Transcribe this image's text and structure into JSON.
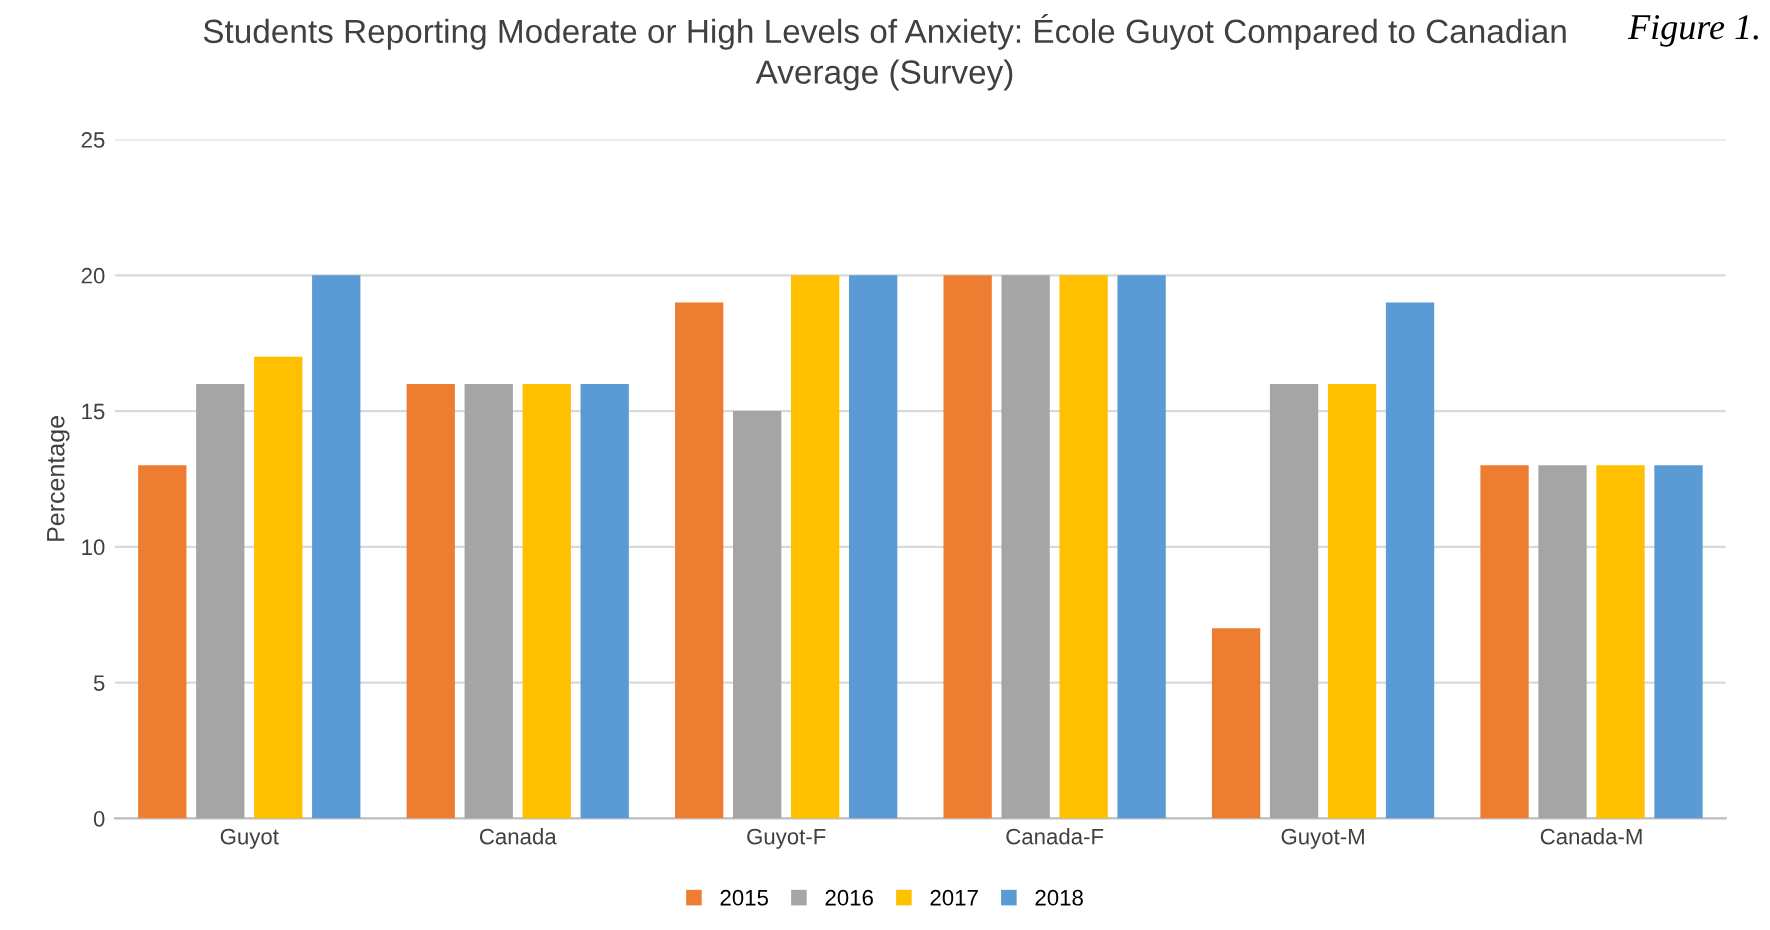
{
  "chart_data": {
    "type": "bar",
    "title": "Students Reporting Moderate or High Levels of Anxiety: École Guyot Compared to Canadian\nAverage (Survey)",
    "ylabel": "Percentage",
    "annotations": [
      "Figure 1."
    ],
    "categories": [
      "Guyot",
      "Canada",
      "Guyot-F",
      "Canada-F",
      "Guyot-M",
      "Canada-M"
    ],
    "series": [
      {
        "name": "2015",
        "color": "#ed7d31",
        "values": [
          13,
          16,
          19,
          20,
          7,
          13
        ]
      },
      {
        "name": "2016",
        "color": "#a5a5a5",
        "values": [
          16,
          16,
          15,
          20,
          16,
          13
        ]
      },
      {
        "name": "2017",
        "color": "#ffc000",
        "values": [
          17,
          16,
          20,
          20,
          16,
          13
        ]
      },
      {
        "name": "2018",
        "color": "#5b9bd5",
        "values": [
          20,
          16,
          20,
          20,
          19,
          13
        ]
      }
    ],
    "ylim": [
      0,
      25
    ],
    "yticks": [
      0,
      5,
      10,
      15,
      20,
      25
    ],
    "grid": "y",
    "legend": "bottom"
  }
}
